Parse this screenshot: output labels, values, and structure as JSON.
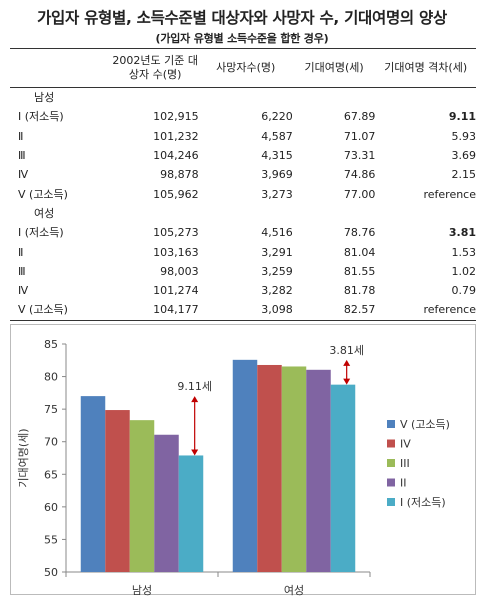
{
  "title": "가입자 유형별, 소득수준별 대상자와 사망자 수, 기대여명의 양상",
  "subtitle": "(가입자 유형별 소득수준을 합한 경우)",
  "table": {
    "headers": [
      "",
      "2002년도 기준 대상자 수(명)",
      "사망자수(명)",
      "기대여명(세)",
      "기대여명 격차(세)"
    ],
    "groups": [
      {
        "label": "남성",
        "rows": [
          {
            "level": "Ⅰ (저소득)",
            "n": "102,915",
            "deaths": "6,220",
            "le": "67.89",
            "gap": "9.11",
            "bold": true
          },
          {
            "level": "Ⅱ",
            "n": "101,232",
            "deaths": "4,587",
            "le": "71.07",
            "gap": "5.93",
            "bold": false
          },
          {
            "level": "Ⅲ",
            "n": "104,246",
            "deaths": "4,315",
            "le": "73.31",
            "gap": "3.69",
            "bold": false
          },
          {
            "level": "Ⅳ",
            "n": "98,878",
            "deaths": "3,969",
            "le": "74.86",
            "gap": "2.15",
            "bold": false
          },
          {
            "level": "Ⅴ (고소득)",
            "n": "105,962",
            "deaths": "3,273",
            "le": "77.00",
            "gap": "reference",
            "bold": false
          }
        ]
      },
      {
        "label": "여성",
        "rows": [
          {
            "level": "Ⅰ (저소득)",
            "n": "105,273",
            "deaths": "4,516",
            "le": "78.76",
            "gap": "3.81",
            "bold": true
          },
          {
            "level": "Ⅱ",
            "n": "103,163",
            "deaths": "3,291",
            "le": "81.04",
            "gap": "1.53",
            "bold": false
          },
          {
            "level": "Ⅲ",
            "n": "98,003",
            "deaths": "3,259",
            "le": "81.55",
            "gap": "1.02",
            "bold": false
          },
          {
            "level": "Ⅳ",
            "n": "101,274",
            "deaths": "3,282",
            "le": "81.78",
            "gap": "0.79",
            "bold": false
          },
          {
            "level": "Ⅴ (고소득)",
            "n": "104,177",
            "deaths": "3,098",
            "le": "82.57",
            "gap": "reference",
            "bold": false
          }
        ]
      }
    ]
  },
  "chart_data": {
    "type": "bar",
    "categories": [
      "남성",
      "여성"
    ],
    "ylabel": "기대여명(세)",
    "ylim": [
      50,
      85
    ],
    "yticks": [
      50,
      55,
      60,
      65,
      70,
      75,
      80,
      85
    ],
    "grid": false,
    "legend_position": "right",
    "series": [
      {
        "name": "V (고소득)",
        "color": "#4F81BD",
        "values": [
          77.0,
          82.57
        ]
      },
      {
        "name": "IV",
        "color": "#C0504D",
        "values": [
          74.86,
          81.78
        ]
      },
      {
        "name": "III",
        "color": "#9BBB59",
        "values": [
          73.31,
          81.55
        ]
      },
      {
        "name": "II",
        "color": "#8064A2",
        "values": [
          71.07,
          81.04
        ]
      },
      {
        "name": "I (저소득)",
        "color": "#4BACC6",
        "values": [
          67.89,
          78.76
        ]
      }
    ],
    "annotations": [
      {
        "category": "남성",
        "text": "9.11세",
        "from": 67.89,
        "to": 77.0
      },
      {
        "category": "여성",
        "text": "3.81세",
        "from": 78.76,
        "to": 82.57
      }
    ]
  }
}
